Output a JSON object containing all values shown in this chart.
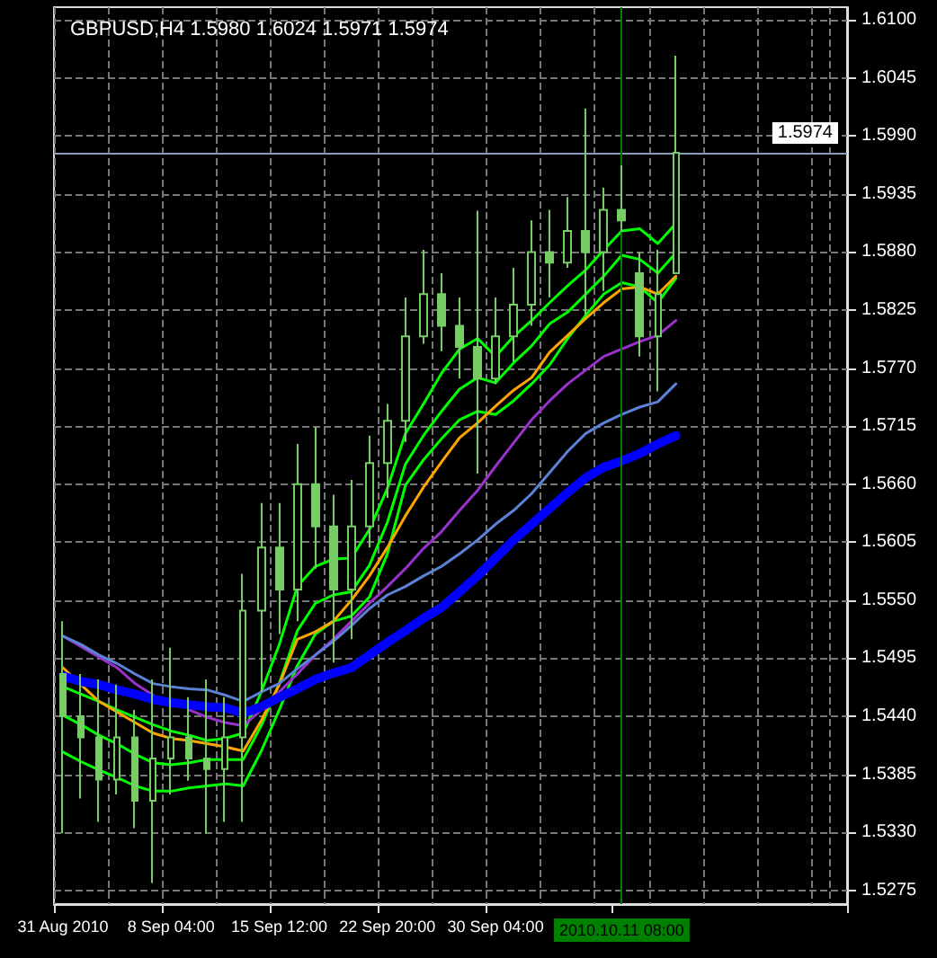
{
  "chart_data": {
    "type": "candlestick",
    "title": "GBPUSD,H4 1.5980 1.6024 1.5971 1.5974",
    "categories": [
      "31 Aug 2010",
      null,
      null,
      null,
      null,
      null,
      "8 Sep 04:00",
      null,
      null,
      null,
      null,
      null,
      "15 Sep 12:00",
      null,
      null,
      null,
      null,
      null,
      "22 Sep 20:00",
      null,
      null,
      null,
      null,
      null,
      "30 Sep 04:00",
      null,
      null,
      null,
      null,
      null,
      null,
      "2010.10.11 08:00",
      null,
      null,
      null,
      null,
      null,
      null,
      null,
      null,
      null,
      null,
      null,
      null
    ],
    "series": [
      {
        "color": "#77cc66",
        "ohlc": [
          [
            1.548,
            1.553,
            1.5329,
            1.544
          ],
          [
            1.544,
            1.548,
            1.5362,
            1.542
          ],
          [
            1.542,
            1.5475,
            1.534,
            1.538
          ],
          [
            1.538,
            1.547,
            1.5366,
            1.542
          ],
          [
            1.542,
            1.5446,
            1.5334,
            1.536
          ],
          [
            1.536,
            1.5475,
            1.5282,
            1.54
          ],
          [
            1.54,
            1.5505,
            1.5366,
            1.542
          ],
          [
            1.542,
            1.5458,
            1.5379,
            1.54
          ],
          [
            1.54,
            1.5475,
            1.5329,
            1.539
          ],
          [
            1.539,
            1.5458,
            1.534,
            1.542
          ],
          [
            1.542,
            1.5575,
            1.534,
            1.554
          ],
          [
            1.554,
            1.5642,
            1.5463,
            1.56
          ],
          [
            1.56,
            1.5642,
            1.5518,
            1.556
          ],
          [
            1.556,
            1.5698,
            1.553,
            1.566
          ],
          [
            1.566,
            1.5714,
            1.558,
            1.562
          ],
          [
            1.562,
            1.565,
            1.5491,
            1.556
          ],
          [
            1.556,
            1.5664,
            1.5513,
            1.562
          ],
          [
            1.562,
            1.5706,
            1.56,
            1.568
          ],
          [
            1.568,
            1.5736,
            1.5647,
            1.572
          ],
          [
            1.572,
            1.5837,
            1.57,
            1.58
          ],
          [
            1.58,
            1.5882,
            1.5793,
            1.584
          ],
          [
            1.584,
            1.586,
            1.5786,
            1.581
          ],
          [
            1.581,
            1.5837,
            1.576,
            1.579
          ],
          [
            1.579,
            1.5919,
            1.567,
            1.576
          ],
          [
            1.576,
            1.5837,
            1.5755,
            1.58
          ],
          [
            1.58,
            1.5865,
            1.5776,
            1.583
          ],
          [
            1.583,
            1.591,
            1.581,
            1.588
          ],
          [
            1.588,
            1.592,
            1.5837,
            1.587
          ],
          [
            1.587,
            1.5932,
            1.5865,
            1.59
          ],
          [
            1.59,
            1.6016,
            1.582,
            1.588
          ],
          [
            1.588,
            1.5941,
            1.5843,
            1.592
          ],
          [
            1.592,
            1.5962,
            1.5899,
            1.591
          ],
          [
            1.586,
            1.588,
            1.5781,
            1.58
          ],
          [
            1.58,
            1.5882,
            1.5748,
            1.584
          ],
          [
            1.586,
            1.6066,
            1.586,
            1.5974
          ],
          null,
          null,
          null,
          null,
          null,
          null,
          null,
          null,
          null
        ]
      },
      {
        "type": "line",
        "color": "#00ff00",
        "values": [
          1.5468,
          1.5461,
          1.5454,
          1.5446,
          1.5439,
          1.5432,
          1.5426,
          1.5422,
          1.5417,
          1.5419,
          1.5424,
          1.5463,
          1.5508,
          1.5563,
          1.5582,
          1.5589,
          1.559,
          1.5617,
          1.5656,
          1.5708,
          1.5736,
          1.5765,
          1.5788,
          1.5798,
          1.5781,
          1.58,
          1.5815,
          1.5832,
          1.5848,
          1.5863,
          1.5882,
          1.59,
          1.5902,
          1.5888,
          1.5907,
          null,
          null,
          null,
          null,
          null,
          null,
          null,
          null,
          null
        ]
      },
      {
        "type": "line",
        "color": "#00ff00",
        "values": [
          1.5441,
          1.5432,
          1.5422,
          1.5414,
          1.5404,
          1.5396,
          1.5394,
          1.5396,
          1.5399,
          1.5399,
          1.5399,
          1.5431,
          1.5471,
          1.5521,
          1.5547,
          1.5555,
          1.5558,
          1.5583,
          1.5624,
          1.5679,
          1.5706,
          1.5729,
          1.575,
          1.5761,
          1.5756,
          1.5775,
          1.5791,
          1.5812,
          1.5823,
          1.584,
          1.5857,
          1.5877,
          1.5873,
          1.586,
          1.5879,
          null,
          null,
          null,
          null,
          null,
          null,
          null,
          null,
          null
        ]
      },
      {
        "type": "line",
        "color": "#00ff00",
        "values": [
          1.5406,
          1.5397,
          1.5389,
          1.5382,
          1.5374,
          1.5369,
          1.5369,
          1.5372,
          1.5374,
          1.5376,
          1.5374,
          1.5407,
          1.5446,
          1.5488,
          1.5518,
          1.553,
          1.5535,
          1.5553,
          1.5594,
          1.5659,
          1.5683,
          1.5703,
          1.5721,
          1.5729,
          1.5726,
          1.5739,
          1.5755,
          1.5773,
          1.5798,
          1.582,
          1.584,
          1.5851,
          1.5847,
          1.5832,
          1.5855,
          null,
          null,
          null,
          null,
          null,
          null,
          null,
          null,
          null
        ]
      },
      {
        "type": "line",
        "color": "#ffa500",
        "values": [
          1.5486,
          1.547,
          1.5454,
          1.5444,
          1.5434,
          1.5424,
          1.5419,
          1.5417,
          1.5414,
          1.5411,
          1.5407,
          1.5436,
          1.547,
          1.5513,
          1.552,
          1.553,
          1.555,
          1.5573,
          1.56,
          1.563,
          1.5657,
          1.5681,
          1.5704,
          1.5718,
          1.5734,
          1.5749,
          1.5761,
          1.5785,
          1.5801,
          1.5817,
          1.5832,
          1.5845,
          1.5847,
          1.584,
          1.5857,
          null,
          null,
          null,
          null,
          null,
          null,
          null,
          null,
          null
        ]
      },
      {
        "type": "line",
        "color": "#9932cc",
        "values": [
          1.5516,
          1.5506,
          1.5496,
          1.5486,
          1.5471,
          1.546,
          null,
          1.5446,
          1.5439,
          1.5434,
          1.5431,
          1.5446,
          1.5463,
          1.548,
          1.5498,
          1.5513,
          1.553,
          1.5547,
          1.5563,
          1.558,
          1.5599,
          1.5615,
          1.5635,
          1.5654,
          1.5677,
          1.5699,
          1.5721,
          1.5739,
          1.5755,
          1.5768,
          1.5781,
          1.5788,
          1.5795,
          1.5801,
          1.5815,
          null,
          null,
          null,
          null,
          null,
          null,
          null,
          null,
          null
        ]
      },
      {
        "type": "line",
        "color": "#5b82d6",
        "values": [
          1.5516,
          1.5508,
          1.5498,
          1.549,
          1.548,
          1.5471,
          1.5468,
          1.5466,
          1.5465,
          1.546,
          1.5454,
          1.5463,
          1.5471,
          1.5485,
          1.5498,
          1.5511,
          1.5526,
          1.5542,
          1.5555,
          1.5563,
          1.5573,
          1.5582,
          1.5594,
          1.5607,
          1.5622,
          1.5635,
          1.5651,
          1.5671,
          1.5691,
          1.5708,
          1.5718,
          1.5726,
          1.5733,
          1.5738,
          1.5755,
          null,
          null,
          null,
          null,
          null,
          null,
          null,
          null,
          null
        ]
      },
      {
        "type": "line",
        "color": "#0000ff",
        "values": [
          1.5478,
          1.5473,
          1.547,
          1.5465,
          1.5461,
          1.5456,
          1.5453,
          1.5451,
          1.5449,
          1.5448,
          1.5443,
          1.5449,
          1.5458,
          1.5466,
          1.5475,
          1.5481,
          1.5486,
          1.5498,
          1.551,
          1.5521,
          1.5533,
          1.5543,
          1.5558,
          1.5573,
          1.559,
          1.5607,
          1.5622,
          1.5637,
          1.5652,
          1.5666,
          1.5676,
          1.5682,
          1.5689,
          1.5698,
          1.5706,
          null,
          null,
          null,
          null,
          null,
          null,
          null,
          null,
          null
        ]
      }
    ],
    "ylim": [
      1.5262,
      1.6112
    ],
    "yticks": [
      {
        "value": 1.5275,
        "label": "1.5275"
      },
      {
        "value": 1.533,
        "label": "1.5330"
      },
      {
        "value": 1.5385,
        "label": "1.5385"
      },
      {
        "value": 1.544,
        "label": "1.5440"
      },
      {
        "value": 1.5495,
        "label": "1.5495"
      },
      {
        "value": 1.555,
        "label": "1.5550"
      },
      {
        "value": 1.5605,
        "label": "1.5605"
      },
      {
        "value": 1.566,
        "label": "1.5660"
      },
      {
        "value": 1.5715,
        "label": "1.5715"
      },
      {
        "value": 1.577,
        "label": "1.5770"
      },
      {
        "value": 1.5825,
        "label": "1.5825"
      },
      {
        "value": 1.588,
        "label": "1.5880"
      },
      {
        "value": 1.5935,
        "label": "1.5935"
      },
      {
        "value": 1.599,
        "label": "1.5990"
      },
      {
        "value": 1.6045,
        "label": "1.6045"
      },
      {
        "value": 1.61,
        "label": "1.6100"
      }
    ],
    "ref_lines": [
      {
        "axis": "y",
        "value": 1.5974,
        "label": "1.5974",
        "color": "#8a9bb5"
      },
      {
        "axis": "x",
        "value": "2010.10.11 08:00",
        "color": "#008000"
      }
    ],
    "grid": true,
    "marker": "none"
  }
}
